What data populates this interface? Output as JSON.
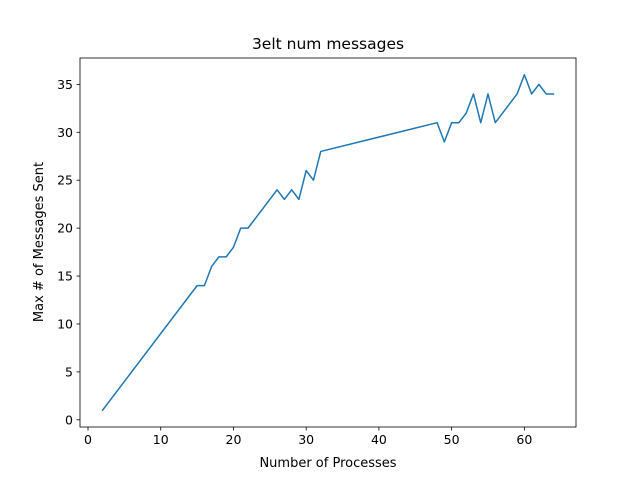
{
  "chart_data": {
    "type": "line",
    "title": "3elt num messages",
    "xlabel": "Number of Processes",
    "ylabel": "Max # of Messages Sent",
    "xlim": [
      -1.1,
      67.1
    ],
    "ylim": [
      -0.75,
      37.75
    ],
    "xticks": [
      0,
      10,
      20,
      30,
      40,
      50,
      60
    ],
    "yticks": [
      0,
      5,
      10,
      15,
      20,
      25,
      30,
      35
    ],
    "grid": false,
    "legend": "none",
    "series": [
      {
        "color": "#1f77b4",
        "x": [
          2,
          15,
          16,
          17,
          18,
          19,
          20,
          21,
          22,
          26,
          27,
          28,
          29,
          30,
          31,
          32,
          48,
          49,
          50,
          51,
          52,
          53,
          54,
          55,
          56,
          59,
          60,
          61,
          62,
          63,
          64
        ],
        "y": [
          1,
          14,
          14,
          16,
          17,
          17,
          18,
          20,
          20,
          24,
          23,
          24,
          23,
          26,
          25,
          28,
          31,
          29,
          31,
          31,
          32,
          34,
          31,
          34,
          31,
          34,
          36,
          34,
          35,
          34,
          34
        ]
      }
    ]
  }
}
